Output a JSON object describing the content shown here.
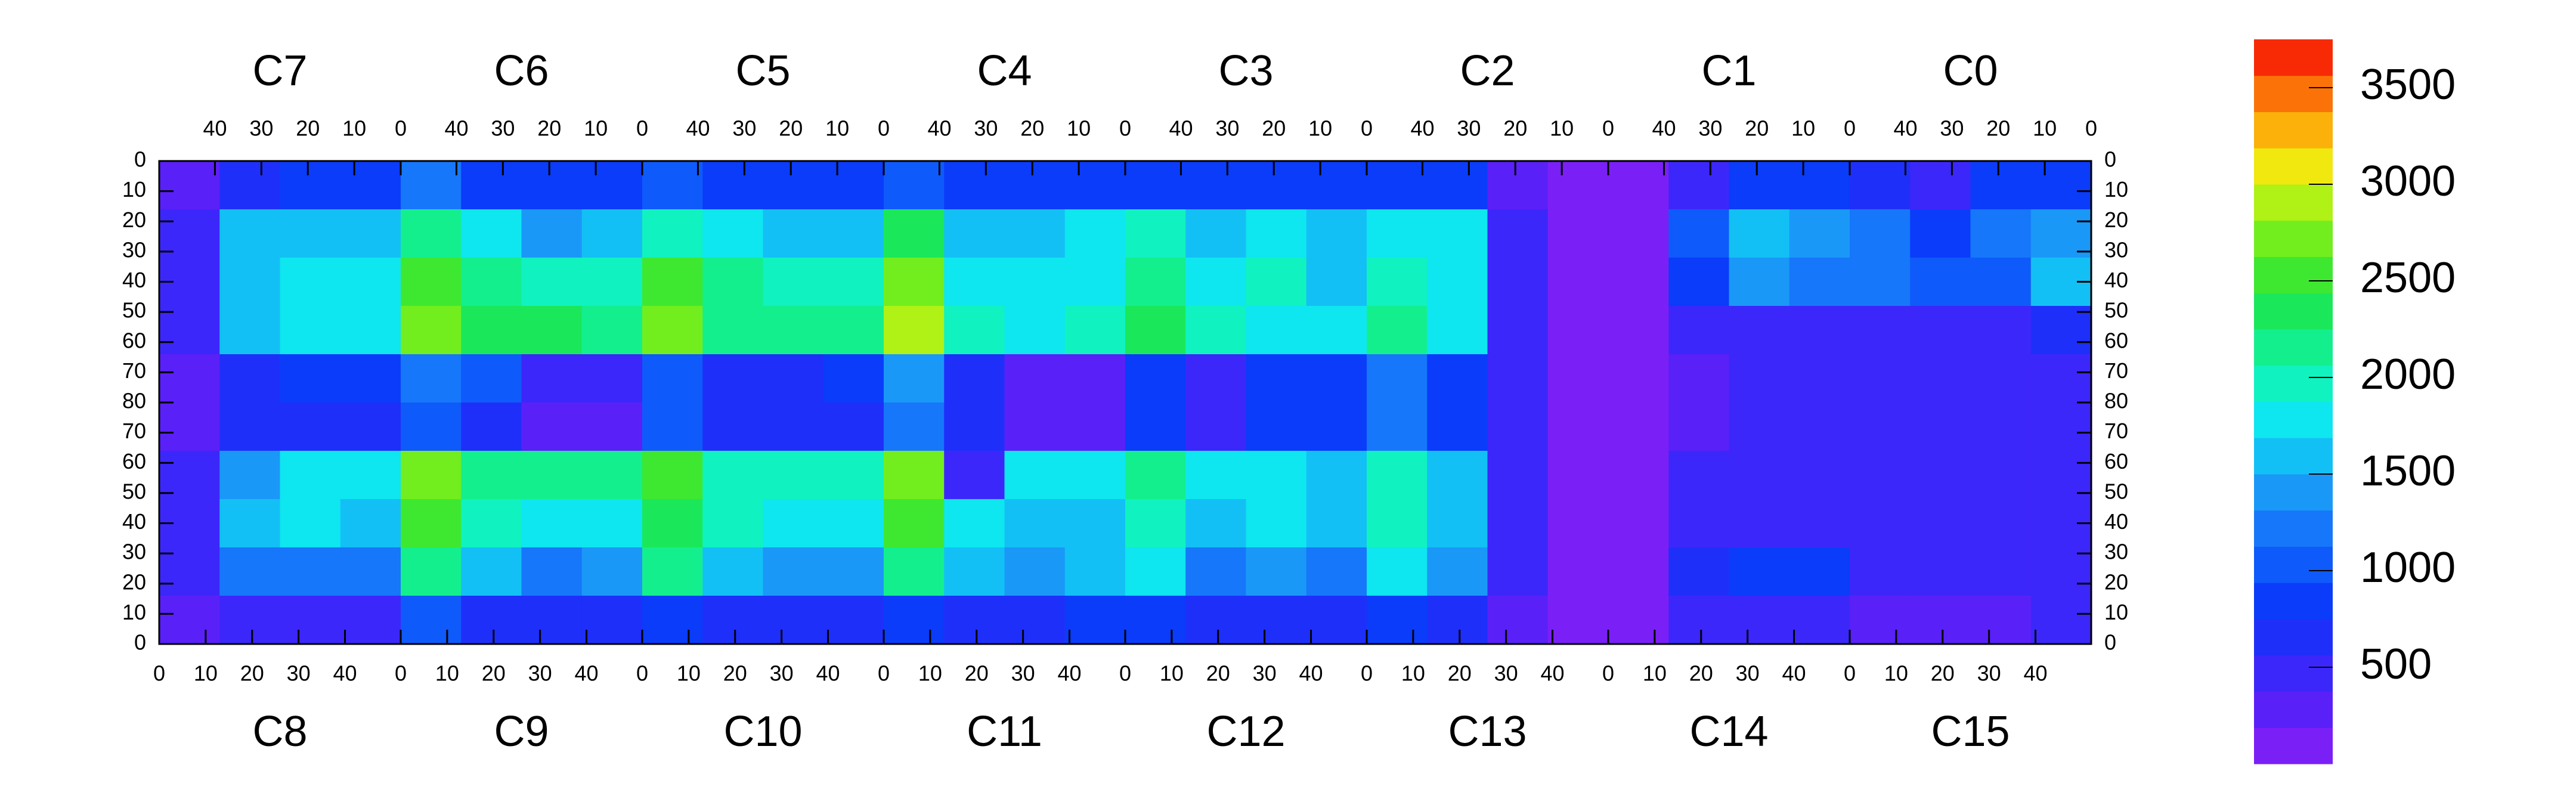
{
  "chart_data": {
    "type": "heatmap",
    "top_labels": [
      "C7",
      "C6",
      "C5",
      "C4",
      "C3",
      "C2",
      "C1",
      "C0"
    ],
    "bottom_labels": [
      "C8",
      "C9",
      "C10",
      "C11",
      "C12",
      "C13",
      "C14",
      "C15"
    ],
    "xlim": [
      0,
      416
    ],
    "ylim": [
      0,
      160
    ],
    "xticks": [
      0,
      10,
      20,
      30,
      40,
      {
        "value": 52,
        "label": "0"
      },
      {
        "value": 62,
        "label": "10"
      },
      {
        "value": 72,
        "label": "20"
      },
      {
        "value": 82,
        "label": "30"
      },
      {
        "value": 92,
        "label": "40"
      },
      {
        "value": 104,
        "label": "0"
      },
      {
        "value": 114,
        "label": "10"
      },
      {
        "value": 124,
        "label": "20"
      },
      {
        "value": 134,
        "label": "30"
      },
      {
        "value": 144,
        "label": "40"
      },
      {
        "value": 156,
        "label": "0"
      },
      {
        "value": 166,
        "label": "10"
      },
      {
        "value": 176,
        "label": "20"
      },
      {
        "value": 186,
        "label": "30"
      },
      {
        "value": 196,
        "label": "40"
      },
      {
        "value": 208,
        "label": "0"
      },
      {
        "value": 218,
        "label": "10"
      },
      {
        "value": 228,
        "label": "20"
      },
      {
        "value": 238,
        "label": "30"
      },
      {
        "value": 248,
        "label": "40"
      },
      {
        "value": 260,
        "label": "0"
      },
      {
        "value": 270,
        "label": "10"
      },
      {
        "value": 280,
        "label": "20"
      },
      {
        "value": 290,
        "label": "30"
      },
      {
        "value": 300,
        "label": "40"
      },
      {
        "value": 312,
        "label": "0"
      },
      {
        "value": 322,
        "label": "10"
      },
      {
        "value": 332,
        "label": "20"
      },
      {
        "value": 342,
        "label": "30"
      },
      {
        "value": 352,
        "label": "40"
      },
      {
        "value": 364,
        "label": "0"
      },
      {
        "value": 374,
        "label": "10"
      },
      {
        "value": 384,
        "label": "20"
      },
      {
        "value": 394,
        "label": "30"
      },
      {
        "value": 404,
        "label": "40"
      }
    ],
    "x2ticks": [
      {
        "value": 12,
        "label": "40"
      },
      {
        "value": 22,
        "label": "30"
      },
      {
        "value": 32,
        "label": "20"
      },
      {
        "value": 42,
        "label": "10"
      },
      {
        "value": 52,
        "label": "0"
      },
      {
        "value": 64,
        "label": "40"
      },
      {
        "value": 74,
        "label": "30"
      },
      {
        "value": 84,
        "label": "20"
      },
      {
        "value": 94,
        "label": "10"
      },
      {
        "value": 104,
        "label": "0"
      },
      {
        "value": 116,
        "label": "40"
      },
      {
        "value": 126,
        "label": "30"
      },
      {
        "value": 136,
        "label": "20"
      },
      {
        "value": 146,
        "label": "10"
      },
      {
        "value": 156,
        "label": "0"
      },
      {
        "value": 168,
        "label": "40"
      },
      {
        "value": 178,
        "label": "30"
      },
      {
        "value": 188,
        "label": "20"
      },
      {
        "value": 198,
        "label": "10"
      },
      {
        "value": 208,
        "label": "0"
      },
      {
        "value": 220,
        "label": "40"
      },
      {
        "value": 230,
        "label": "30"
      },
      {
        "value": 240,
        "label": "20"
      },
      {
        "value": 250,
        "label": "10"
      },
      {
        "value": 260,
        "label": "0"
      },
      {
        "value": 272,
        "label": "40"
      },
      {
        "value": 282,
        "label": "30"
      },
      {
        "value": 292,
        "label": "20"
      },
      {
        "value": 302,
        "label": "10"
      },
      {
        "value": 312,
        "label": "0"
      },
      {
        "value": 324,
        "label": "40"
      },
      {
        "value": 334,
        "label": "30"
      },
      {
        "value": 344,
        "label": "20"
      },
      {
        "value": 354,
        "label": "10"
      },
      {
        "value": 364,
        "label": "0"
      },
      {
        "value": 376,
        "label": "40"
      },
      {
        "value": 386,
        "label": "30"
      },
      {
        "value": 396,
        "label": "20"
      },
      {
        "value": 406,
        "label": "10"
      },
      {
        "value": 416,
        "label": "0"
      }
    ],
    "yticks": [
      0,
      10,
      20,
      30,
      40,
      50,
      60,
      70,
      80,
      {
        "value": 90,
        "label": "70"
      },
      {
        "value": 100,
        "label": "60"
      },
      {
        "value": 110,
        "label": "50"
      },
      {
        "value": 120,
        "label": "40"
      },
      {
        "value": 130,
        "label": "30"
      },
      {
        "value": 140,
        "label": "20"
      },
      {
        "value": 150,
        "label": "10"
      },
      {
        "value": 160,
        "label": "0"
      }
    ],
    "xbins": [
      0,
      13,
      26,
      39,
      52,
      65,
      78,
      91,
      104,
      117,
      130,
      143,
      156,
      169,
      182,
      195,
      208,
      221,
      234,
      247,
      260,
      273,
      286,
      299,
      312,
      325,
      338,
      351,
      364,
      377,
      390,
      403,
      416
    ],
    "ybins": [
      0,
      16,
      32,
      48,
      64,
      80,
      96,
      112,
      128,
      144,
      160
    ],
    "z": [
      [
        300,
        700,
        800,
        800,
        1200,
        900,
        800,
        900,
        1100,
        800,
        800,
        900,
        1000,
        800,
        800,
        800,
        900,
        800,
        900,
        800,
        900,
        800,
        300,
        150,
        150,
        400,
        800,
        900,
        600,
        500,
        800,
        900
      ],
      [
        400,
        1500,
        1600,
        1500,
        2200,
        1800,
        1400,
        1600,
        2000,
        1700,
        1500,
        1600,
        2300,
        1600,
        1500,
        1700,
        1900,
        1600,
        1700,
        1500,
        1800,
        1700,
        500,
        150,
        150,
        1000,
        1500,
        1400,
        1200,
        900,
        1200,
        1400
      ],
      [
        400,
        1600,
        1700,
        1700,
        2600,
        2100,
        2000,
        2000,
        2500,
        2100,
        1900,
        2000,
        2700,
        1800,
        1700,
        1800,
        2200,
        1800,
        1900,
        1600,
        2000,
        1700,
        500,
        150,
        150,
        900,
        1400,
        1300,
        1200,
        1000,
        1100,
        1500
      ],
      [
        400,
        1500,
        1800,
        1700,
        2800,
        2300,
        2300,
        2200,
        2700,
        2200,
        2100,
        2100,
        2900,
        1900,
        1800,
        1900,
        2300,
        1900,
        1800,
        1700,
        2100,
        1700,
        500,
        150,
        150,
        400,
        500,
        500,
        500,
        500,
        500,
        600
      ],
      [
        300,
        700,
        800,
        800,
        1200,
        1000,
        500,
        500,
        1100,
        700,
        700,
        800,
        1400,
        700,
        300,
        300,
        900,
        500,
        800,
        900,
        1300,
        900,
        400,
        150,
        150,
        300,
        400,
        400,
        400,
        400,
        400,
        400
      ],
      [
        300,
        600,
        700,
        700,
        1100,
        700,
        300,
        300,
        1000,
        700,
        700,
        700,
        1300,
        600,
        300,
        300,
        800,
        500,
        800,
        800,
        1200,
        800,
        400,
        150,
        150,
        300,
        400,
        400,
        400,
        400,
        400,
        400
      ],
      [
        400,
        1400,
        1700,
        1700,
        2700,
        2200,
        2100,
        2100,
        2600,
        2000,
        2000,
        1900,
        2800,
        500,
        1700,
        1700,
        2200,
        1700,
        1700,
        1600,
        2000,
        1600,
        500,
        150,
        150,
        400,
        500,
        500,
        500,
        500,
        500,
        500
      ],
      [
        400,
        1500,
        1700,
        1600,
        2500,
        2000,
        1800,
        1800,
        2400,
        1900,
        1700,
        1800,
        2500,
        1700,
        1600,
        1600,
        2000,
        1600,
        1700,
        1500,
        1900,
        1600,
        500,
        150,
        150,
        400,
        500,
        500,
        400,
        400,
        500,
        500
      ],
      [
        400,
        1300,
        1300,
        1200,
        2200,
        1600,
        1300,
        1400,
        2100,
        1500,
        1400,
        1400,
        2200,
        1500,
        1400,
        1500,
        1800,
        1300,
        1400,
        1300,
        1700,
        1400,
        500,
        150,
        150,
        600,
        800,
        800,
        500,
        500,
        500,
        500
      ],
      [
        300,
        400,
        500,
        500,
        1000,
        600,
        600,
        700,
        900,
        600,
        600,
        600,
        900,
        700,
        700,
        800,
        800,
        700,
        700,
        600,
        900,
        700,
        300,
        150,
        150,
        400,
        500,
        500,
        300,
        300,
        300,
        400
      ]
    ],
    "zlim": [
      0,
      3750
    ],
    "zticks": [
      500,
      1000,
      1500,
      2000,
      2500,
      3000,
      3500
    ],
    "colors": [
      "#7b1ff7",
      "#5a20f8",
      "#3c27fa",
      "#1f2ffa",
      "#0a3cfa",
      "#0f5afa",
      "#1677fa",
      "#1a98f8",
      "#13c0f5",
      "#0ee6f0",
      "#10f2c0",
      "#14ef8e",
      "#1ae85a",
      "#3ee830",
      "#72ee1e",
      "#b0f116",
      "#f0e80e",
      "#fbb00a",
      "#fb7308",
      "#f82a05"
    ]
  }
}
